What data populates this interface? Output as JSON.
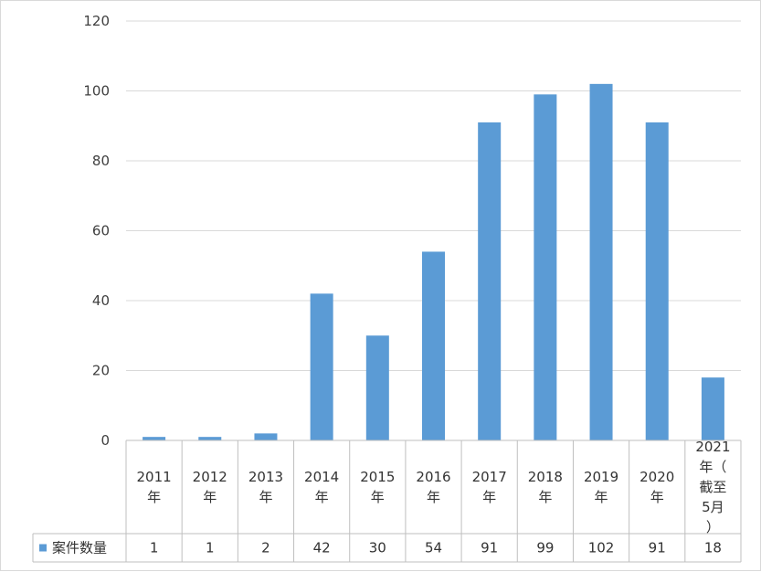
{
  "chart_data": {
    "type": "bar",
    "categories": [
      "2011年",
      "2012年",
      "2013年",
      "2014年",
      "2015年",
      "2016年",
      "2017年",
      "2018年",
      "2019年",
      "2020年",
      "2021年（截至5月）"
    ],
    "series": [
      {
        "name": "案件数量",
        "values": [
          1,
          1,
          2,
          42,
          30,
          54,
          91,
          99,
          102,
          91,
          18
        ]
      }
    ],
    "ylim": [
      0,
      120
    ],
    "yticks": [
      0,
      20,
      40,
      60,
      80,
      100,
      120
    ],
    "grid": true,
    "legend": "bottom data table",
    "colors": {
      "bar": "#5b9bd5",
      "grid": "#d9d9d9",
      "table_border": "#bfbfbf"
    }
  }
}
